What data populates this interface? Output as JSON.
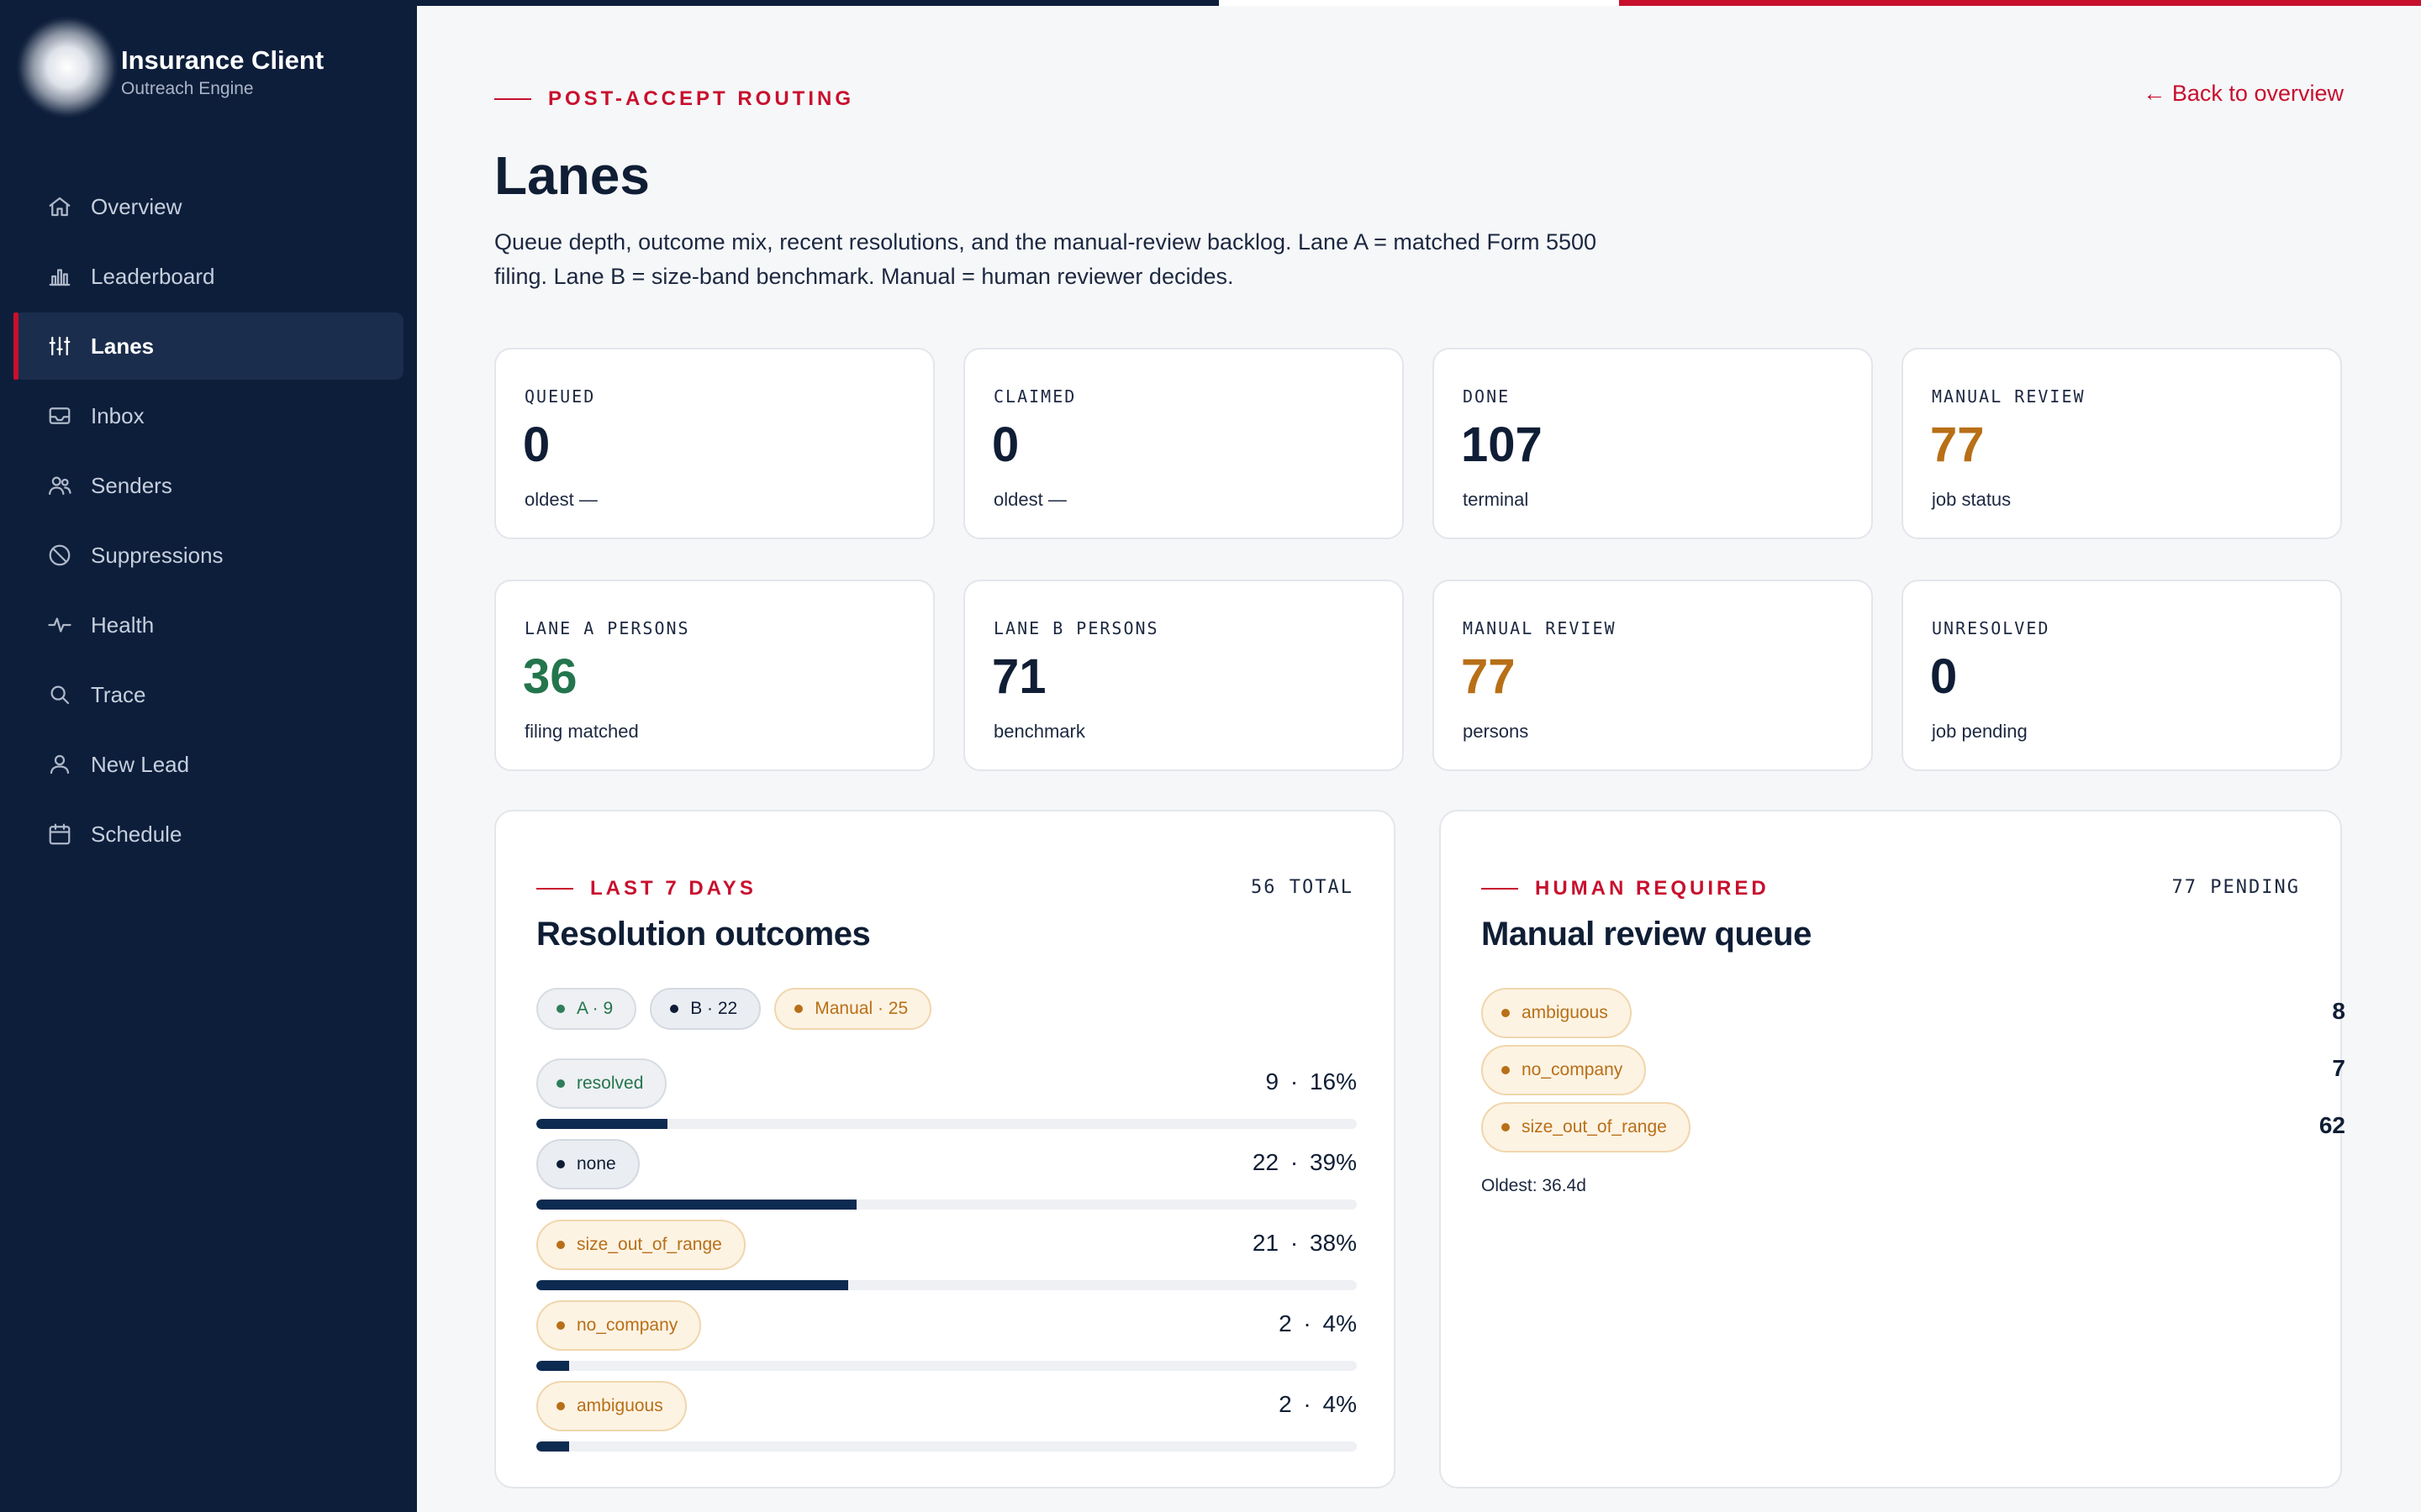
{
  "sidebar": {
    "brand_title": "Insurance Client",
    "brand_subtitle": "Outreach Engine",
    "items": [
      {
        "label": "Overview",
        "icon": "home-icon"
      },
      {
        "label": "Leaderboard",
        "icon": "bar-chart-icon"
      },
      {
        "label": "Lanes",
        "icon": "sliders-icon",
        "active": true
      },
      {
        "label": "Inbox",
        "icon": "inbox-icon"
      },
      {
        "label": "Senders",
        "icon": "users-icon"
      },
      {
        "label": "Suppressions",
        "icon": "ban-icon"
      },
      {
        "label": "Health",
        "icon": "pulse-icon"
      },
      {
        "label": "Trace",
        "icon": "search-icon"
      },
      {
        "label": "New Lead",
        "icon": "user-icon"
      },
      {
        "label": "Schedule",
        "icon": "calendar-icon"
      }
    ]
  },
  "header": {
    "eyebrow": "POST-ACCEPT ROUTING",
    "back_link": "← Back to overview",
    "title": "Lanes",
    "description": "Queue depth, outcome mix, recent resolutions, and the manual-review backlog. Lane A = matched Form 5500 filing. Lane B = size-band benchmark. Manual = human reviewer decides."
  },
  "stats_row1": [
    {
      "label": "QUEUED",
      "value": "0",
      "sub": "oldest —"
    },
    {
      "label": "CLAIMED",
      "value": "0",
      "sub": "oldest —"
    },
    {
      "label": "DONE",
      "value": "107",
      "sub": "terminal"
    },
    {
      "label": "MANUAL REVIEW",
      "value": "77",
      "sub": "job status"
    }
  ],
  "stats_row2": [
    {
      "label": "LANE A PERSONS",
      "value": "36",
      "sub": "filing matched"
    },
    {
      "label": "LANE B PERSONS",
      "value": "71",
      "sub": "benchmark"
    },
    {
      "label": "MANUAL REVIEW",
      "value": "77",
      "sub": "persons"
    },
    {
      "label": "UNRESOLVED",
      "value": "0",
      "sub": "job pending"
    }
  ],
  "outcomes": {
    "eyebrow": "LAST 7 DAYS",
    "count": "56 TOTAL",
    "title": "Resolution outcomes",
    "legend": [
      {
        "label": "A · 9",
        "tone": "green"
      },
      {
        "label": "B · 22",
        "tone": "navy"
      },
      {
        "label": "Manual · 25",
        "tone": "amber"
      }
    ],
    "rows": [
      {
        "label": "resolved",
        "tone": "green",
        "count": "9 · 16%",
        "fraction": 0.16
      },
      {
        "label": "none",
        "tone": "navy",
        "count": "22 · 39%",
        "fraction": 0.39
      },
      {
        "label": "size_out_of_range",
        "tone": "amber",
        "count": "21 · 38%",
        "fraction": 0.38
      },
      {
        "label": "no_company",
        "tone": "amber",
        "count": "2 · 4%",
        "fraction": 0.04
      },
      {
        "label": "ambiguous",
        "tone": "amber",
        "count": "2 · 4%",
        "fraction": 0.04
      }
    ]
  },
  "review": {
    "eyebrow": "HUMAN REQUIRED",
    "count": "77 PENDING",
    "title": "Manual review queue",
    "rows": [
      {
        "label": "ambiguous",
        "count": "8"
      },
      {
        "label": "no_company",
        "count": "7"
      },
      {
        "label": "size_out_of_range",
        "count": "62"
      }
    ],
    "oldest": "Oldest: 36.4d"
  },
  "colors": {
    "sidebar_bg": "#0d1e3b",
    "accent_red": "#c8102e",
    "lane_a_green": "#23754d",
    "manual_amber": "#b86f17",
    "bar_navy": "#0d2a50"
  }
}
